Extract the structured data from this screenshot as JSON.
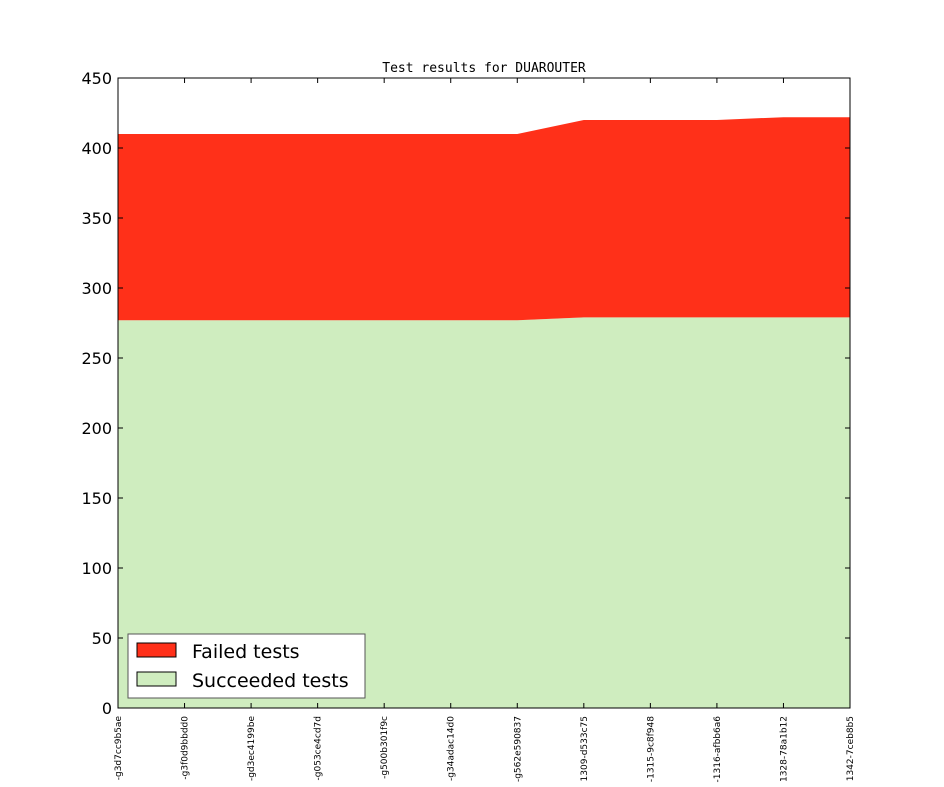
{
  "chart_data": {
    "type": "area",
    "title": "Test results for DUAROUTER",
    "xlabel": "",
    "ylabel": "",
    "ylim": [
      0,
      450
    ],
    "yticks": [
      0,
      50,
      100,
      150,
      200,
      250,
      300,
      350,
      400,
      450
    ],
    "categories": [
      "-g3d7cc9b5ae",
      "-g3f0d9bbdd0",
      "-gd3ec4199be",
      "-g053ce4cd7d",
      "-g500b301f9c",
      "-g34adac14d0",
      "-g562e590837",
      "1309-d533c75",
      "-1315-9c8f948",
      "-1316-afbb6a6",
      "1328-78a1b12",
      "1342-7ceb8b5"
    ],
    "stacked": true,
    "series": [
      {
        "name": "Succeeded tests",
        "color": "#cfedbf",
        "values": [
          277,
          277,
          277,
          277,
          277,
          277,
          277,
          279,
          279,
          279,
          279,
          279
        ]
      },
      {
        "name": "Failed tests",
        "color": "#ff3019",
        "values": [
          133,
          133,
          133,
          133,
          133,
          133,
          133,
          141,
          141,
          141,
          143,
          143
        ]
      }
    ],
    "legend": {
      "position": "bottom-left",
      "entries": [
        "Failed tests",
        "Succeeded tests"
      ]
    },
    "grid": false
  }
}
